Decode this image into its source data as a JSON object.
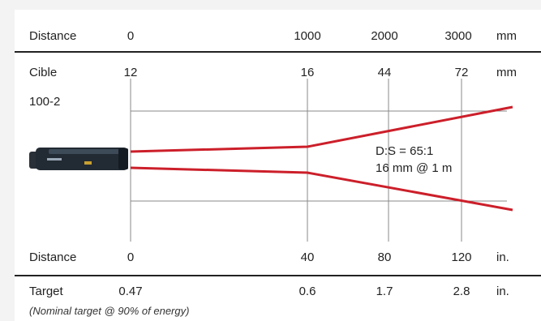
{
  "colors": {
    "beam": "#cc1f2a",
    "rule": "#222222",
    "grid": "#8a8a8a",
    "panel": "#ffffff",
    "background": "#f3f3f3"
  },
  "icons": {
    "sensor": "pyrometer-sensor-icon"
  },
  "rows": {
    "distance_mm": {
      "label": "Distance",
      "unit": "mm",
      "values": [
        "0",
        "1000",
        "2000",
        "3000"
      ]
    },
    "target_mm": {
      "label": "Cible",
      "model": "100-2",
      "unit": "mm",
      "values": [
        "12",
        "16",
        "44",
        "72"
      ]
    },
    "distance_in": {
      "label": "Distance",
      "unit": "in.",
      "values": [
        "0",
        "40",
        "80",
        "120"
      ]
    },
    "target_in": {
      "label": "Target",
      "unit": "in.",
      "values": [
        "0.47",
        "0.6",
        "1.7",
        "2.8"
      ]
    }
  },
  "optics": {
    "ratio": "D:S = 65:1",
    "spot": "16 mm @ 1 m"
  },
  "footnote": "(Nominal target @ 90% of energy)"
}
